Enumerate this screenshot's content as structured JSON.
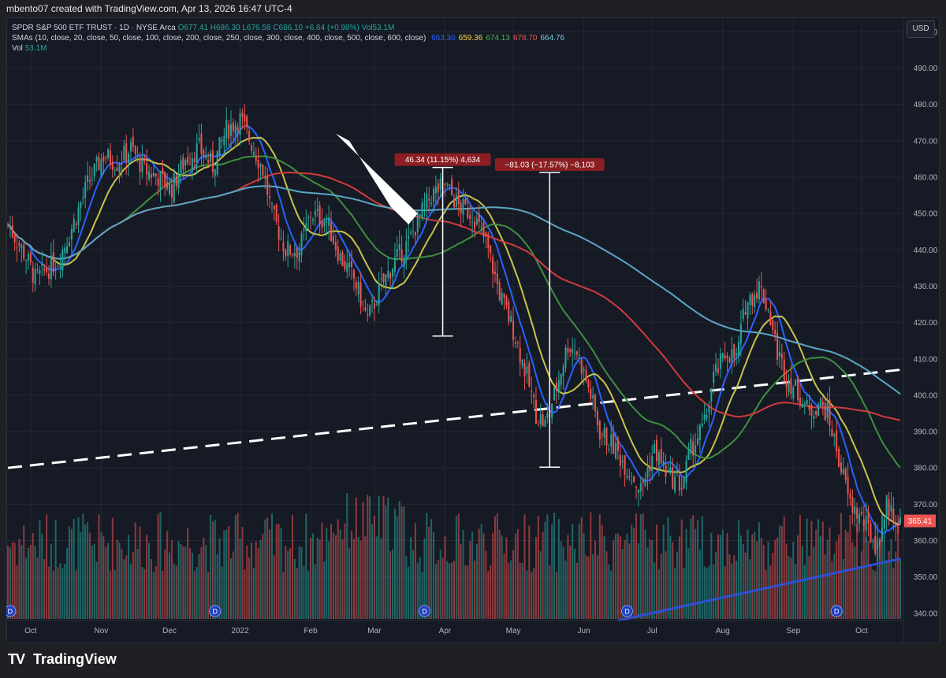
{
  "header": {
    "credit": "mbento07 created with TradingView.com, Apr 13, 2026 16:47 UTC-4"
  },
  "legend": {
    "title": "SPDR S&P 500 ETF TRUST · 1D · NYSE Arca",
    "ohlc": "O677.41 H686.30 L676.58 C686.10 +6.64 (+0.98%) Vol53.1M",
    "sma_label": "SMAs (10, close, 20, close, 50, close, 100, close, 200, close, 250, close, 300, close, 400, close, 500, close, 600, close)",
    "sma_values": [
      {
        "text": "663.30",
        "color": "#2962ff"
      },
      {
        "text": "659.36",
        "color": "#f5d547"
      },
      {
        "text": "674.13",
        "color": "#4caf50"
      },
      {
        "text": "678.70",
        "color": "#ef5350"
      },
      {
        "text": "664.76",
        "color": "#7ec8e3"
      }
    ],
    "vol_label": "Vol",
    "vol_value": "53.1M"
  },
  "currency": "USD",
  "footer": {
    "brand": "TradingView"
  },
  "colors": {
    "up": "#26a69a",
    "down": "#ef5350",
    "sma10": "#2962ff",
    "sma20": "#c9c34a",
    "sma50": "#3f8f3f",
    "sma100": "#d13b3b",
    "sma200": "#5ba7c4",
    "trendline": "#ffffff",
    "support": "#2e4fd1"
  },
  "chart_data": {
    "type": "candlestick",
    "y_ticks": [
      "500.00",
      "490.00",
      "480.00",
      "470.00",
      "460.00",
      "450.00",
      "440.00",
      "430.00",
      "420.00",
      "410.00",
      "400.00",
      "390.00",
      "380.00",
      "370.00",
      "360.00",
      "350.00",
      "340.00"
    ],
    "ylim": [
      338,
      504
    ],
    "x_ticks": [
      "Oct",
      "Nov",
      "Dec",
      "2022",
      "Feb",
      "Mar",
      "Apr",
      "May",
      "Jun",
      "Jul",
      "Aug",
      "Sep",
      "Oct"
    ],
    "x_tick_days": [
      10,
      41,
      71,
      102,
      133,
      161,
      192,
      222,
      253,
      283,
      314,
      345,
      375
    ],
    "xlim": [
      0,
      392
    ],
    "last_price": "365.41",
    "close_anchors": [
      [
        0,
        447
      ],
      [
        8,
        438
      ],
      [
        12,
        432
      ],
      [
        16,
        434
      ],
      [
        22,
        437
      ],
      [
        28,
        446
      ],
      [
        35,
        458
      ],
      [
        42,
        466
      ],
      [
        48,
        464
      ],
      [
        54,
        468
      ],
      [
        60,
        462
      ],
      [
        66,
        460
      ],
      [
        72,
        457
      ],
      [
        78,
        465
      ],
      [
        84,
        468
      ],
      [
        90,
        463
      ],
      [
        96,
        473
      ],
      [
        102,
        476
      ],
      [
        108,
        468
      ],
      [
        112,
        462
      ],
      [
        116,
        450
      ],
      [
        122,
        440
      ],
      [
        128,
        440
      ],
      [
        133,
        450
      ],
      [
        140,
        448
      ],
      [
        146,
        438
      ],
      [
        152,
        432
      ],
      [
        158,
        421
      ],
      [
        164,
        430
      ],
      [
        170,
        437
      ],
      [
        176,
        442
      ],
      [
        180,
        448
      ],
      [
        186,
        455
      ],
      [
        192,
        458
      ],
      [
        198,
        452
      ],
      [
        204,
        450
      ],
      [
        210,
        442
      ],
      [
        216,
        428
      ],
      [
        222,
        418
      ],
      [
        228,
        405
      ],
      [
        232,
        395
      ],
      [
        236,
        392
      ],
      [
        240,
        400
      ],
      [
        246,
        414
      ],
      [
        250,
        412
      ],
      [
        256,
        400
      ],
      [
        260,
        390
      ],
      [
        266,
        386
      ],
      [
        272,
        380
      ],
      [
        278,
        374
      ],
      [
        284,
        385
      ],
      [
        290,
        378
      ],
      [
        296,
        375
      ],
      [
        300,
        385
      ],
      [
        306,
        392
      ],
      [
        310,
        405
      ],
      [
        316,
        412
      ],
      [
        320,
        410
      ],
      [
        324,
        425
      ],
      [
        330,
        430
      ],
      [
        334,
        424
      ],
      [
        338,
        412
      ],
      [
        342,
        405
      ],
      [
        348,
        400
      ],
      [
        352,
        395
      ],
      [
        356,
        398
      ],
      [
        360,
        395
      ],
      [
        364,
        385
      ],
      [
        370,
        370
      ],
      [
        376,
        365
      ],
      [
        382,
        358
      ],
      [
        386,
        370
      ],
      [
        391,
        365
      ]
    ],
    "indicators": [
      {
        "name": "SMA 10",
        "value": "663.30"
      },
      {
        "name": "SMA 20",
        "value": "659.36"
      },
      {
        "name": "SMA 50",
        "value": "674.13"
      },
      {
        "name": "SMA 100",
        "value": "678.70"
      },
      {
        "name": "SMA 200",
        "value": "664.76"
      }
    ],
    "annotations": [
      {
        "label": "46.34 (11.15%) 4,634",
        "from_day": 191,
        "low": 416.3,
        "high": 462.7
      },
      {
        "label": "−81.03 (−17.57%) −8,103",
        "from_day": 238,
        "high": 461.3,
        "low": 380.2
      }
    ],
    "trendline": {
      "from": [
        0,
        380
      ],
      "to": [
        392,
        407
      ]
    },
    "support_line": {
      "from": [
        268,
        338
      ],
      "to": [
        392,
        355
      ]
    },
    "dividend_days": [
      1,
      91,
      183,
      272,
      364
    ]
  }
}
